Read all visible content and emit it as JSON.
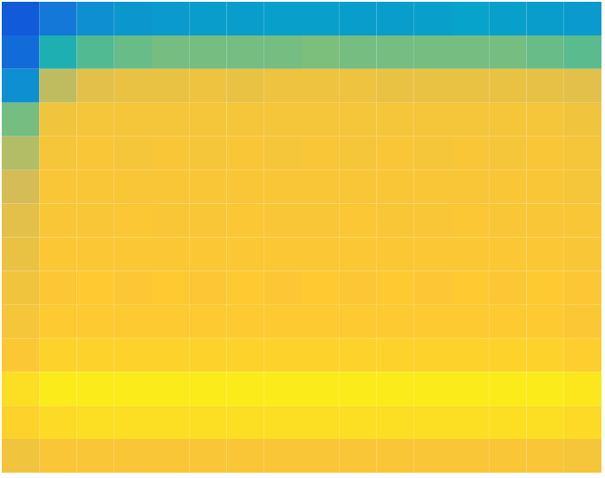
{
  "chart_data": {
    "type": "heatmap",
    "tick_labels": false,
    "color_range": [
      0,
      1
    ],
    "cells": [
      [
        0.12,
        0.22,
        0.3,
        0.33,
        0.34,
        0.35,
        0.35,
        0.36,
        0.36,
        0.35,
        0.35,
        0.36,
        0.37,
        0.36,
        0.35,
        0.34
      ],
      [
        0.18,
        0.45,
        0.55,
        0.58,
        0.6,
        0.6,
        0.6,
        0.6,
        0.61,
        0.6,
        0.6,
        0.6,
        0.6,
        0.6,
        0.58,
        0.56
      ],
      [
        0.3,
        0.72,
        0.8,
        0.82,
        0.82,
        0.83,
        0.82,
        0.83,
        0.83,
        0.83,
        0.82,
        0.82,
        0.82,
        0.82,
        0.81,
        0.8
      ],
      [
        0.6,
        0.84,
        0.85,
        0.85,
        0.85,
        0.85,
        0.85,
        0.85,
        0.85,
        0.85,
        0.85,
        0.85,
        0.85,
        0.85,
        0.85,
        0.84
      ],
      [
        0.7,
        0.85,
        0.86,
        0.85,
        0.86,
        0.85,
        0.86,
        0.85,
        0.86,
        0.85,
        0.86,
        0.85,
        0.86,
        0.85,
        0.86,
        0.85
      ],
      [
        0.76,
        0.86,
        0.86,
        0.86,
        0.86,
        0.86,
        0.86,
        0.86,
        0.86,
        0.86,
        0.86,
        0.86,
        0.86,
        0.86,
        0.86,
        0.85
      ],
      [
        0.8,
        0.86,
        0.86,
        0.87,
        0.86,
        0.86,
        0.87,
        0.86,
        0.86,
        0.87,
        0.86,
        0.86,
        0.87,
        0.86,
        0.86,
        0.86
      ],
      [
        0.82,
        0.87,
        0.87,
        0.87,
        0.87,
        0.87,
        0.87,
        0.87,
        0.87,
        0.87,
        0.87,
        0.87,
        0.87,
        0.87,
        0.87,
        0.86
      ],
      [
        0.84,
        0.87,
        0.88,
        0.87,
        0.88,
        0.87,
        0.88,
        0.87,
        0.88,
        0.87,
        0.88,
        0.87,
        0.88,
        0.87,
        0.88,
        0.87
      ],
      [
        0.85,
        0.88,
        0.88,
        0.88,
        0.88,
        0.88,
        0.88,
        0.88,
        0.88,
        0.88,
        0.88,
        0.88,
        0.88,
        0.88,
        0.88,
        0.87
      ],
      [
        0.87,
        0.9,
        0.9,
        0.9,
        0.9,
        0.9,
        0.9,
        0.9,
        0.9,
        0.9,
        0.9,
        0.9,
        0.9,
        0.9,
        0.9,
        0.89
      ],
      [
        0.93,
        0.96,
        0.96,
        0.96,
        0.96,
        0.96,
        0.96,
        0.96,
        0.96,
        0.96,
        0.96,
        0.96,
        0.96,
        0.96,
        0.96,
        0.95
      ],
      [
        0.9,
        0.92,
        0.93,
        0.93,
        0.93,
        0.93,
        0.93,
        0.93,
        0.93,
        0.93,
        0.93,
        0.93,
        0.93,
        0.93,
        0.93,
        0.92
      ],
      [
        0.84,
        0.86,
        0.86,
        0.86,
        0.86,
        0.86,
        0.86,
        0.86,
        0.86,
        0.86,
        0.86,
        0.86,
        0.86,
        0.86,
        0.86,
        0.85
      ]
    ]
  }
}
